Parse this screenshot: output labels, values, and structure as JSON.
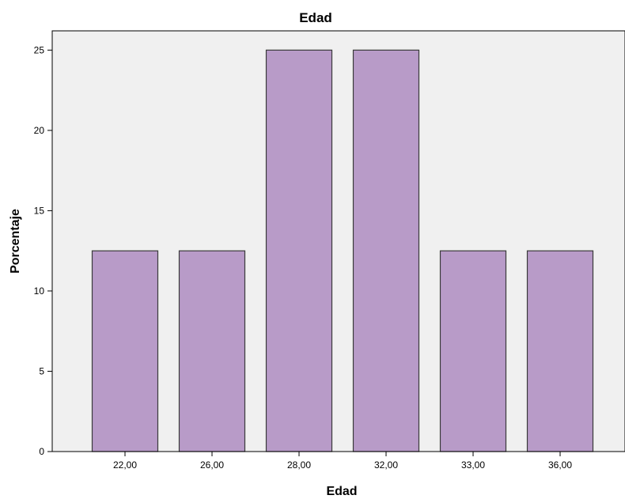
{
  "chart_data": {
    "type": "bar",
    "title": "Edad",
    "xlabel": "Edad",
    "ylabel": "Porcentaje",
    "categories": [
      "22,00",
      "26,00",
      "28,00",
      "32,00",
      "33,00",
      "36,00"
    ],
    "values": [
      12.5,
      12.5,
      25,
      25,
      12.5,
      12.5
    ],
    "ylim": [
      0,
      26.2
    ],
    "yticks": [
      "0",
      "5",
      "10",
      "15",
      "20",
      "25"
    ],
    "grid": false,
    "legend": "none",
    "colors": {
      "bar_fill": "#b89bc8",
      "bar_stroke": "#3a3a3a",
      "plot_background": "#f0f0f0",
      "axis": "#000000"
    }
  }
}
